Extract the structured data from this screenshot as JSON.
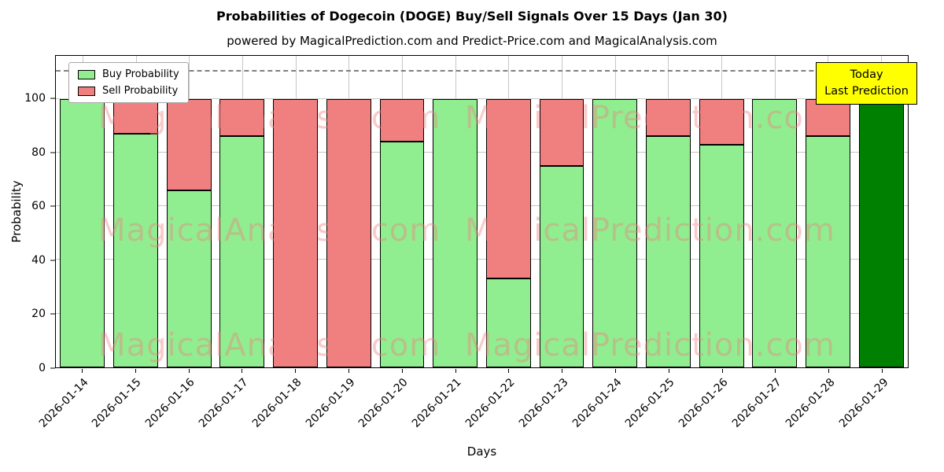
{
  "title": "Probabilities of Dogecoin (DOGE) Buy/Sell Signals Over 15 Days (Jan 30)",
  "subtitle": "powered by MagicalPrediction.com and Predict-Price.com and MagicalAnalysis.com",
  "legend": [
    {
      "label": "Buy Probability",
      "color": "#90ee90"
    },
    {
      "label": "Sell Probability",
      "color": "#f08080"
    }
  ],
  "annotation": {
    "lines": [
      "Today",
      "Last Prediction"
    ],
    "bg_color": "#ffff00"
  },
  "watermarks": [
    "MagicalAnalysis.com",
    "MagicalPrediction.com"
  ],
  "chart_data": {
    "type": "bar",
    "stacked": true,
    "title": "Probabilities of Dogecoin (DOGE) Buy/Sell Signals Over 15 Days (Jan 30)",
    "xlabel": "Days",
    "ylabel": "Probability",
    "categories": [
      "2026-01-14",
      "2026-01-15",
      "2026-01-16",
      "2026-01-17",
      "2026-01-18",
      "2026-01-19",
      "2026-01-20",
      "2026-01-21",
      "2026-01-22",
      "2026-01-23",
      "2026-01-24",
      "2026-01-25",
      "2026-01-26",
      "2026-01-27",
      "2026-01-28",
      "2026-01-29"
    ],
    "series": [
      {
        "name": "Buy Probability",
        "color": "#90ee90",
        "values": [
          100,
          87,
          66,
          86,
          0,
          0,
          84,
          100,
          33,
          75,
          100,
          86,
          83,
          100,
          86,
          100
        ]
      },
      {
        "name": "Sell Probability",
        "color": "#f08080",
        "values": [
          0,
          13,
          34,
          14,
          100,
          100,
          16,
          0,
          67,
          25,
          0,
          14,
          17,
          0,
          14,
          0
        ]
      }
    ],
    "today_index": 15,
    "today_color": "#008000",
    "yticks": [
      0,
      20,
      40,
      60,
      80,
      100
    ],
    "ylim": [
      0,
      116
    ],
    "dashed_line_y": 110,
    "grid": true,
    "legend_position": "upper-left"
  }
}
